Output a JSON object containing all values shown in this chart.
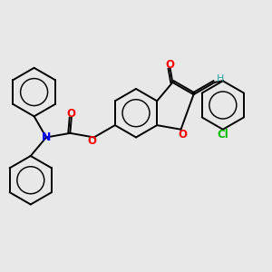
{
  "bg_color": "#e8e8e8",
  "bond_color": "#000000",
  "O_color": "#ff0000",
  "N_color": "#0000ff",
  "Cl_color": "#00bb00",
  "H_color": "#2ca0a0",
  "line_width": 1.4,
  "figsize": [
    3.0,
    3.0
  ],
  "dpi": 100,
  "xlim": [
    0,
    10
  ],
  "ylim": [
    0,
    10
  ]
}
